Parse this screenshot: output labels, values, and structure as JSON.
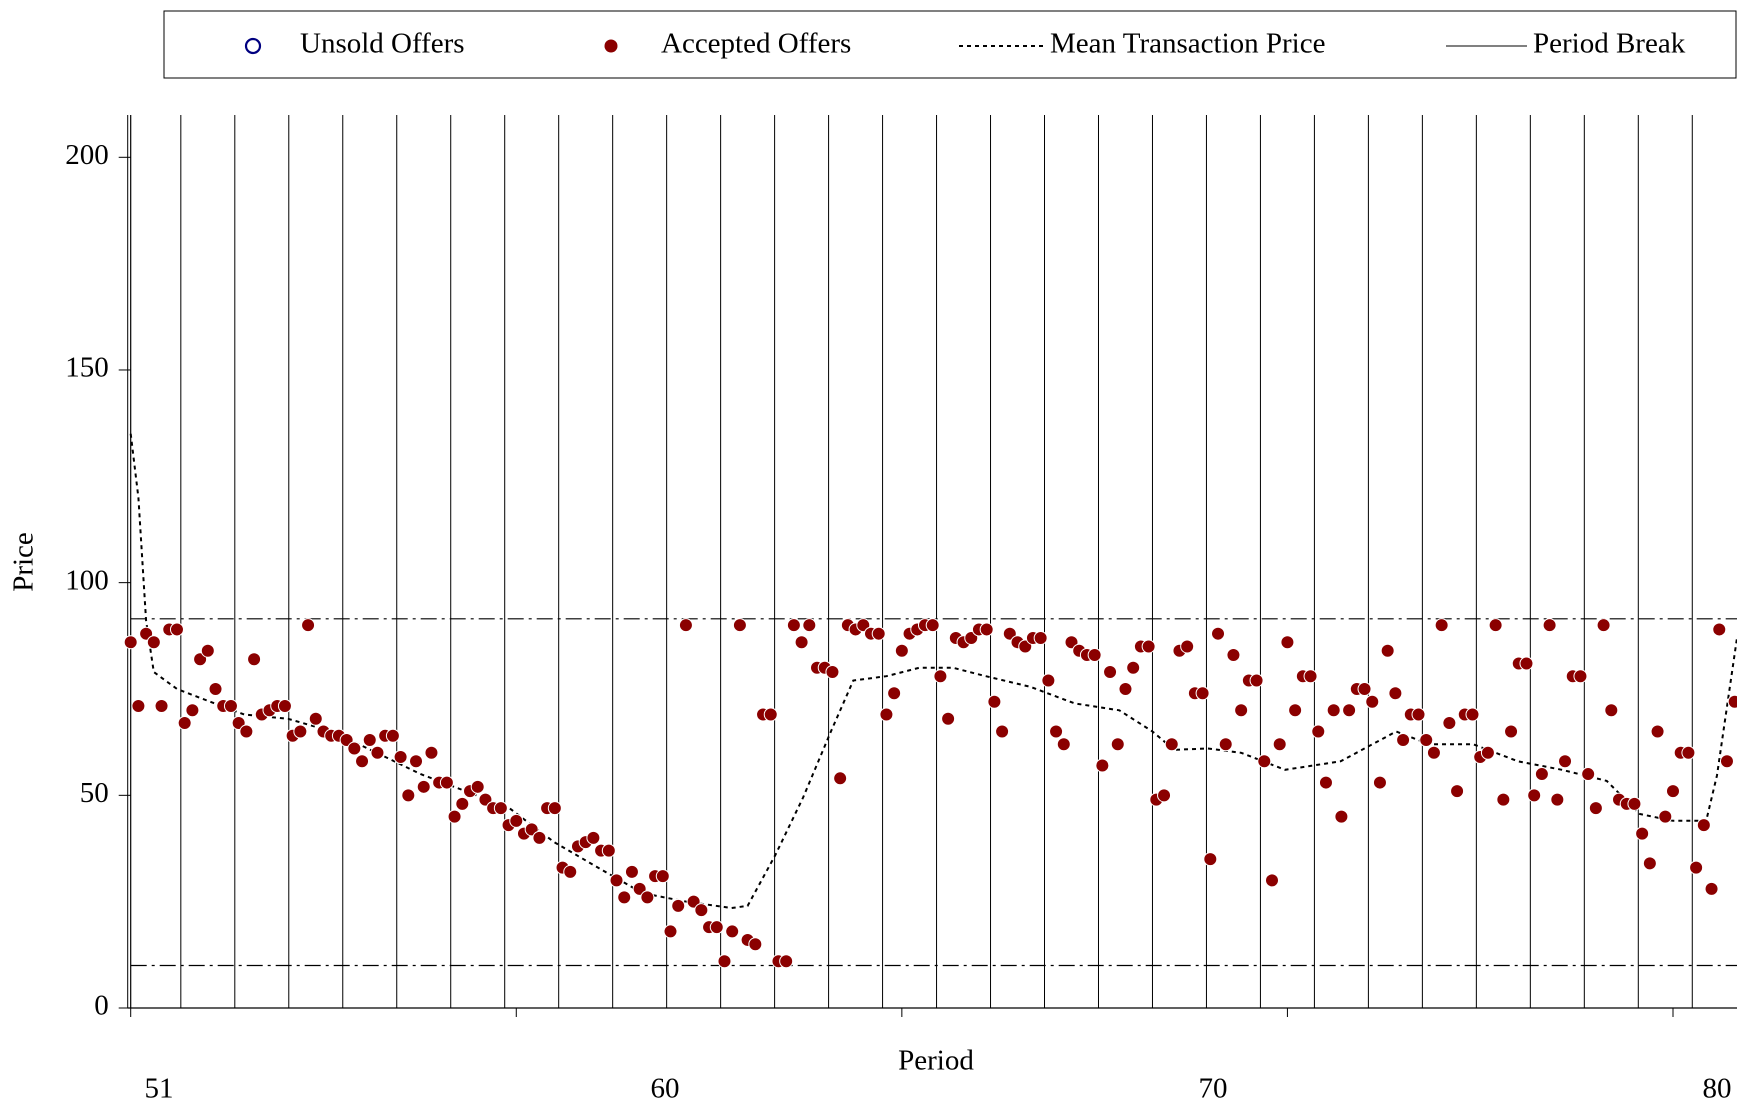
{
  "chart_data": {
    "type": "scatter",
    "ylabel": "Price",
    "xlabel": "Period",
    "ylim": [
      0,
      200
    ],
    "yticks": [
      0,
      50,
      100,
      150,
      200
    ],
    "xlim": [
      0,
      208.3
    ],
    "xticks": [
      0,
      50,
      100,
      150,
      200
    ],
    "period_labels": [
      51,
      60,
      70,
      80
    ],
    "hlines": [
      91.5,
      10
    ],
    "series": [
      {
        "name": "Unsold Offers",
        "color": "#000080",
        "values": []
      },
      {
        "name": "Accepted Offers",
        "color": "#8b0000",
        "values": [
          86,
          71,
          88,
          86,
          71,
          89,
          89,
          67,
          70,
          82,
          84,
          75,
          71,
          71,
          67,
          65,
          82,
          69,
          70,
          71,
          71,
          64,
          65,
          90,
          68,
          65,
          64,
          64,
          63,
          61,
          58,
          63,
          60,
          64,
          64,
          59,
          50,
          58,
          52,
          60,
          53,
          53,
          45,
          48,
          51,
          52,
          49,
          47,
          47,
          43,
          44,
          41,
          42,
          40,
          47,
          47,
          33,
          32,
          38,
          39,
          40,
          37,
          37,
          30,
          26,
          32,
          28,
          26,
          31,
          31,
          18,
          24,
          90,
          25,
          23,
          19,
          19,
          11,
          18,
          90,
          16,
          15,
          69,
          69,
          11,
          11,
          90,
          86,
          90,
          80,
          80,
          79,
          54,
          90,
          89,
          90,
          88,
          88,
          69,
          74,
          84,
          88,
          89,
          90,
          90,
          78,
          68,
          87,
          86,
          87,
          89,
          89,
          72,
          65,
          88,
          86,
          85,
          87,
          87,
          77,
          65,
          62,
          86,
          84,
          83,
          83,
          57,
          79,
          62,
          75,
          80,
          85,
          85,
          49,
          50,
          62,
          84,
          85,
          74,
          74,
          35,
          88,
          62,
          83,
          70,
          77,
          77,
          58,
          30,
          62,
          86,
          70,
          78,
          78,
          65,
          53,
          70,
          45,
          70,
          75,
          75,
          72,
          53,
          84,
          74,
          63,
          69,
          69,
          63,
          60,
          90,
          67,
          51,
          69,
          69,
          59,
          60,
          90,
          49,
          65,
          81,
          81,
          50,
          55,
          90,
          49,
          58,
          78,
          78,
          55,
          47,
          90,
          70,
          49,
          48,
          48,
          41,
          34,
          65,
          45,
          51,
          60,
          60,
          33,
          43,
          28,
          89,
          58,
          72
        ]
      },
      {
        "name": "Mean Transaction Price",
        "color": "#000000",
        "x": [
          0,
          1.0,
          2.0,
          3.0,
          6.0,
          10.3,
          14.7,
          20.4,
          26.1,
          31.9,
          37.6,
          43.4,
          49.1,
          54.9,
          60.6,
          66.4,
          72.1,
          77.9,
          80.0,
          83.6,
          87.2,
          90.8,
          93.7,
          98.0,
          102.3,
          106.6,
          110.9,
          116.7,
          122.4,
          128.2,
          132.5,
          135.3,
          139.7,
          144.0,
          149.7,
          156.9,
          164.1,
          168.4,
          174.1,
          179.9,
          185.6,
          191.4,
          195.7,
          200.0,
          204.3,
          205.7,
          208.3
        ],
        "values": [
          135,
          120,
          91,
          79,
          75,
          72,
          69,
          68,
          65,
          60,
          55,
          51,
          47,
          39,
          33,
          27,
          25,
          23.5,
          24,
          36,
          49.5,
          65,
          77,
          78,
          80,
          80,
          78,
          75.5,
          71.6,
          70,
          65,
          60.7,
          61,
          60,
          56,
          58,
          65,
          62,
          62,
          58,
          56,
          53.4,
          45.6,
          44,
          44,
          54.7,
          87
        ]
      },
      {
        "name": "Period Break",
        "color": "#000000",
        "x": [
          6.5,
          13.5,
          20.5,
          27.5,
          34.5,
          41.5,
          48.5,
          55.5,
          62.5,
          69.5,
          76.5,
          83.5,
          90.5,
          97.5,
          104.5,
          111.5,
          118.5,
          125.5,
          132.5,
          139.5,
          146.5,
          153.5,
          160.5,
          167.5,
          174.5,
          181.5,
          188.5,
          195.5,
          202.5
        ]
      }
    ]
  }
}
